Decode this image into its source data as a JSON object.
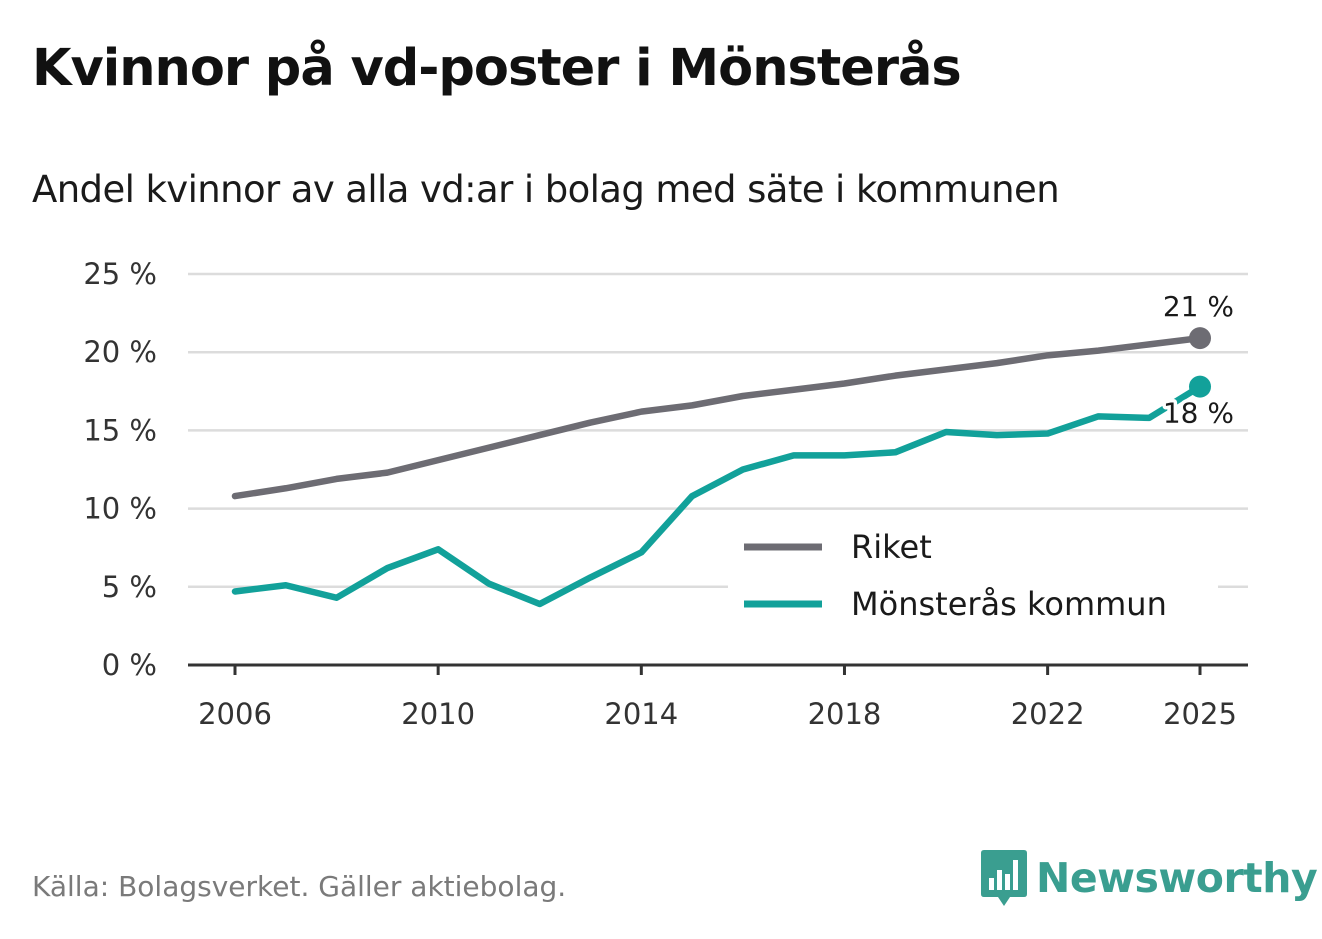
{
  "chart_data": {
    "type": "line",
    "title": "Kvinnor på vd-poster i Mönsterås",
    "subtitle": "Andel kvinnor av alla vd:ar i bolag med säte i kommunen",
    "x": [
      2006,
      2007,
      2008,
      2009,
      2010,
      2011,
      2012,
      2013,
      2014,
      2015,
      2016,
      2017,
      2018,
      2019,
      2020,
      2021,
      2022,
      2023,
      2024,
      2025
    ],
    "series": [
      {
        "name": "Riket",
        "color": "#6d6c73",
        "values": [
          10.8,
          11.3,
          11.9,
          12.3,
          13.1,
          13.9,
          14.7,
          15.5,
          16.2,
          16.6,
          17.2,
          17.6,
          18.0,
          18.5,
          18.9,
          19.3,
          19.8,
          20.1,
          20.5,
          20.9
        ],
        "end_label": "21 %"
      },
      {
        "name": "Mönsterås kommun",
        "color": "#12a19a",
        "values": [
          4.7,
          5.1,
          4.3,
          6.2,
          7.4,
          5.2,
          3.9,
          5.6,
          7.2,
          10.8,
          12.5,
          13.4,
          13.4,
          13.6,
          14.9,
          14.7,
          14.8,
          15.9,
          15.8,
          17.8
        ],
        "end_label": "18 %"
      }
    ],
    "ylim": [
      0,
      25
    ],
    "y_ticks": [
      0,
      5,
      10,
      15,
      20,
      25
    ],
    "y_tick_labels": [
      "0 %",
      "5 %",
      "10 %",
      "15 %",
      "20 %",
      "25 %"
    ],
    "x_ticks": [
      2006,
      2010,
      2014,
      2018,
      2022,
      2025
    ],
    "x_tick_labels": [
      "2006",
      "2010",
      "2014",
      "2018",
      "2022",
      "2025"
    ],
    "xlabel": "",
    "ylabel": "",
    "grid": true,
    "legend_position": "bottom-right"
  },
  "source": "Källa: Bolagsverket. Gäller aktiebolag.",
  "brand": {
    "name": "Newsworthy",
    "color": "#3a9e90",
    "icon": "bar-chart-icon"
  }
}
